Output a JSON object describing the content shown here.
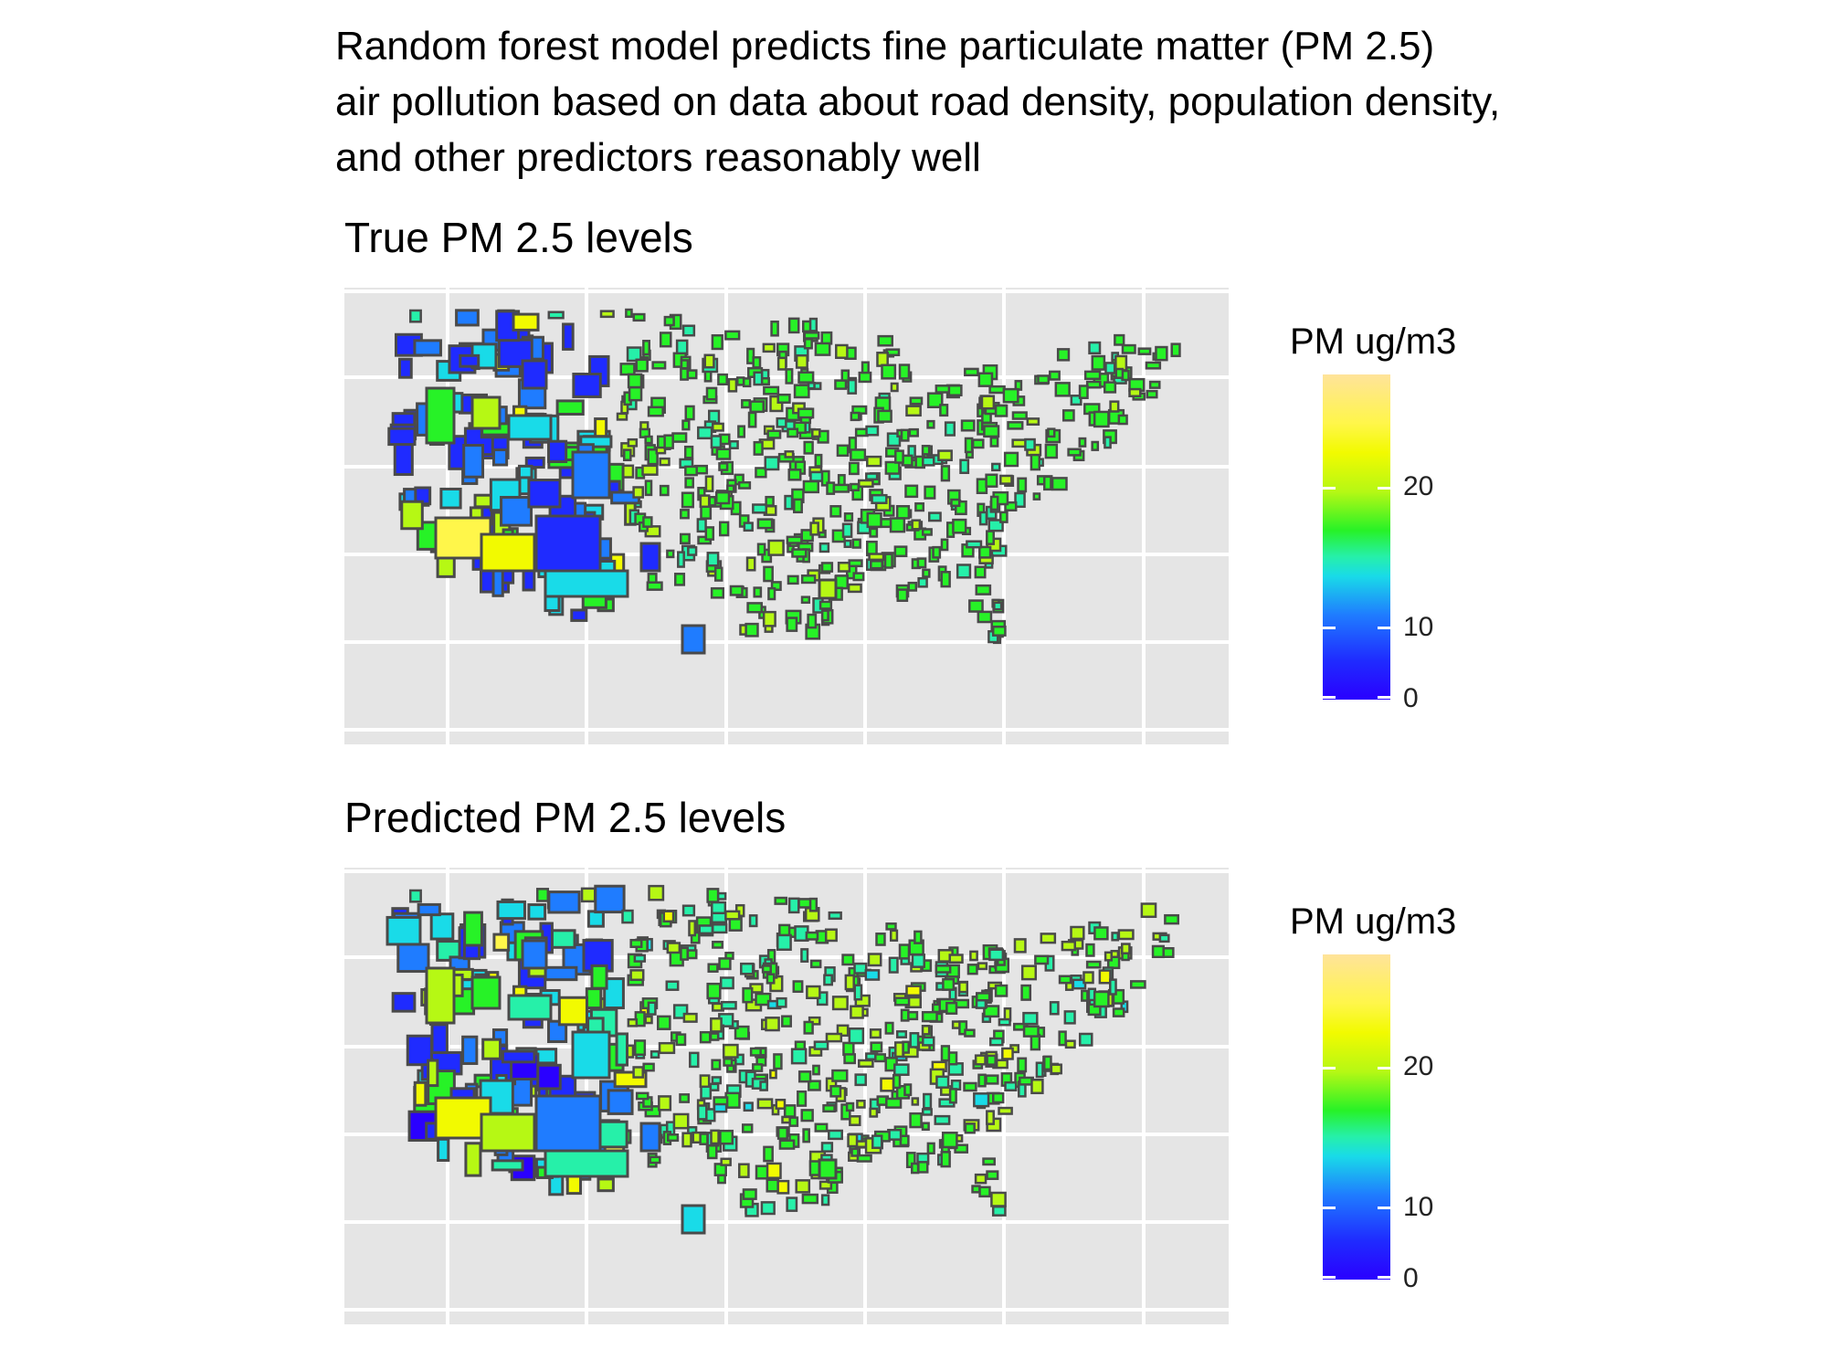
{
  "title_lines": [
    "Random forest model predicts fine particulate matter (PM 2.5)",
    "air pollution based on data about road density, population density,",
    "and other predictors reasonably well"
  ],
  "panels": [
    {
      "id": "true",
      "title": "True PM 2.5 levels",
      "legend_title": "PM ug/m3",
      "legend_ticks": [
        "0",
        "10",
        "20"
      ]
    },
    {
      "id": "predicted",
      "title": "Predicted PM 2.5 levels",
      "legend_title": "PM ug/m3",
      "legend_ticks": [
        "0",
        "10",
        "20"
      ]
    }
  ],
  "color_scale": {
    "min": 0,
    "max": 23.5,
    "breaks": [
      0,
      10,
      20
    ],
    "colors": [
      "#2a00ff",
      "#1f2bff",
      "#1f7cff",
      "#19dbe8",
      "#26f0a9",
      "#27f227",
      "#b6f814",
      "#f2fa00",
      "#fff64a",
      "#ffe39a"
    ]
  },
  "map": {
    "background": "#e5e5e5",
    "gridline_color": "#ffffff",
    "outline_color": "#4a4a4a",
    "regions": [
      "contiguous United States"
    ]
  }
}
